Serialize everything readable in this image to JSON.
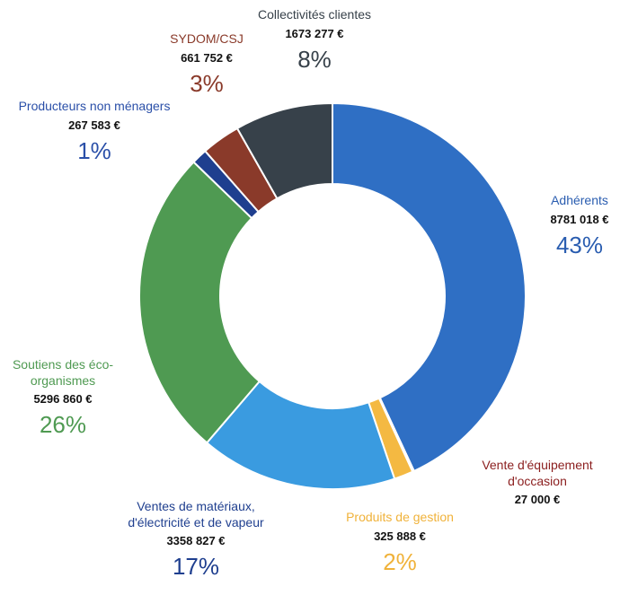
{
  "chart_data": {
    "type": "donut",
    "categories": [
      "Adhérents",
      "Vente d'équipement d'occasion",
      "Produits de gestion",
      "Ventes de matériaux, d'électricité et de vapeur",
      "Soutiens des éco-organismes",
      "Producteurs non ménagers",
      "SYDOM/CSJ",
      "Collectivités clientes"
    ],
    "values": [
      8781018,
      27000,
      325888,
      3358827,
      5296860,
      267583,
      661752,
      1673277
    ],
    "value_labels": [
      "8781 018 €",
      "27 000 €",
      "325 888 €",
      "3358 827 €",
      "5296 860 €",
      "267 583 €",
      "661 752 €",
      "1673 277 €"
    ],
    "percent_labels": [
      "43%",
      null,
      "2%",
      "17%",
      "26%",
      "1%",
      "3%",
      "8%"
    ],
    "colors": [
      "#2f6fc4",
      "#8b1e1e",
      "#f4b942",
      "#3a9be0",
      "#4f9a52",
      "#1f3f8f",
      "#8a3a2a",
      "#37414a"
    ],
    "label_colors": [
      "#2a5db0",
      "#8b1e1e",
      "#f0b23a",
      "#1f3f8f",
      "#4f9a52",
      "#2a4fa8",
      "#8a3a2a",
      "#37414a"
    ]
  }
}
